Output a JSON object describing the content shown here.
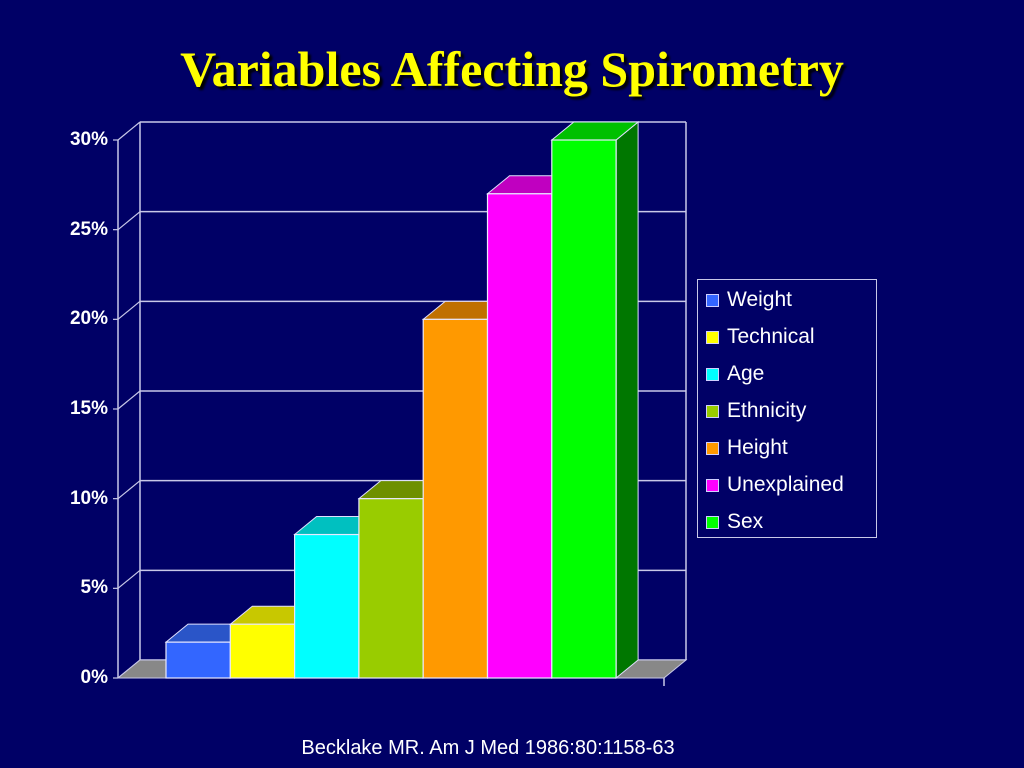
{
  "slide": {
    "title": "Variables Affecting Spirometry",
    "citation": "Becklake MR. Am J Med 1986:80:1158-63",
    "background_color": "#000066",
    "title_color": "#ffff00"
  },
  "chart_data": {
    "type": "bar",
    "style": "3d-column",
    "title": "Variables Affecting Spirometry",
    "xlabel": "",
    "ylabel": "",
    "ylim": [
      0,
      30
    ],
    "yticks": [
      "0%",
      "5%",
      "10%",
      "15%",
      "20%",
      "25%",
      "30%"
    ],
    "grid": true,
    "legend_position": "right",
    "categories": [
      "Weight",
      "Technical",
      "Age",
      "Ethnicity",
      "Height",
      "Unexplained",
      "Sex"
    ],
    "values": [
      2,
      3,
      8,
      10,
      20,
      27,
      30
    ],
    "unit": "%",
    "colors": [
      "#3366ff",
      "#ffff00",
      "#00ffff",
      "#99cc00",
      "#ff9900",
      "#ff00ff",
      "#00ff00"
    ],
    "top_colors": [
      "#2a55c8",
      "#c8c800",
      "#00c0c0",
      "#6e9000",
      "#c07000",
      "#c000c0",
      "#00c000"
    ],
    "side_colors": [
      "#1f3f99",
      "#999900",
      "#009999",
      "#557000",
      "#995c00",
      "#990099",
      "#007700"
    ],
    "annotation": "Becklake MR. Am J Med 1986:80:1158-63"
  },
  "legend": {
    "items": [
      {
        "label": "Weight",
        "color": "#3366ff"
      },
      {
        "label": "Technical",
        "color": "#ffff00"
      },
      {
        "label": "Age",
        "color": "#00ffff"
      },
      {
        "label": "Ethnicity",
        "color": "#99cc00"
      },
      {
        "label": "Height",
        "color": "#ff9900"
      },
      {
        "label": "Unexplained",
        "color": "#ff00ff"
      },
      {
        "label": "Sex",
        "color": "#00ff00"
      }
    ]
  }
}
